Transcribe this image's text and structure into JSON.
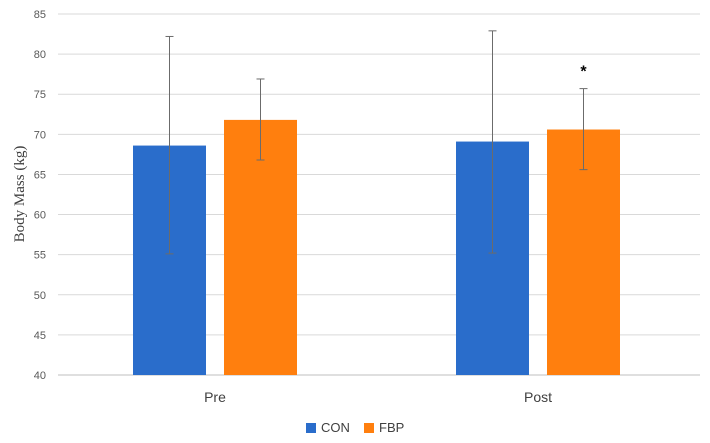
{
  "chart_data": {
    "type": "bar",
    "title": "",
    "xlabel": "",
    "ylabel": "Body Mass (kg)",
    "ylim": [
      40,
      85
    ],
    "yticks": [
      40,
      45,
      50,
      55,
      60,
      65,
      70,
      75,
      80,
      85
    ],
    "grid": true,
    "categories": [
      "Pre",
      "Post"
    ],
    "series": [
      {
        "name": "CON",
        "color": "#2A6DCB",
        "values": [
          68.6,
          69.1
        ],
        "error_low": [
          55.1,
          55.2
        ],
        "error_high": [
          82.2,
          82.9
        ]
      },
      {
        "name": "FBP",
        "color": "#FF7F0E",
        "values": [
          71.8,
          70.6
        ],
        "error_low": [
          66.8,
          65.6
        ],
        "error_high": [
          76.9,
          75.7
        ]
      }
    ],
    "annotations": [
      {
        "category": "Post",
        "series": "FBP",
        "text": "*"
      }
    ],
    "legend": {
      "position": "bottom",
      "entries": [
        "CON",
        "FBP"
      ]
    }
  }
}
